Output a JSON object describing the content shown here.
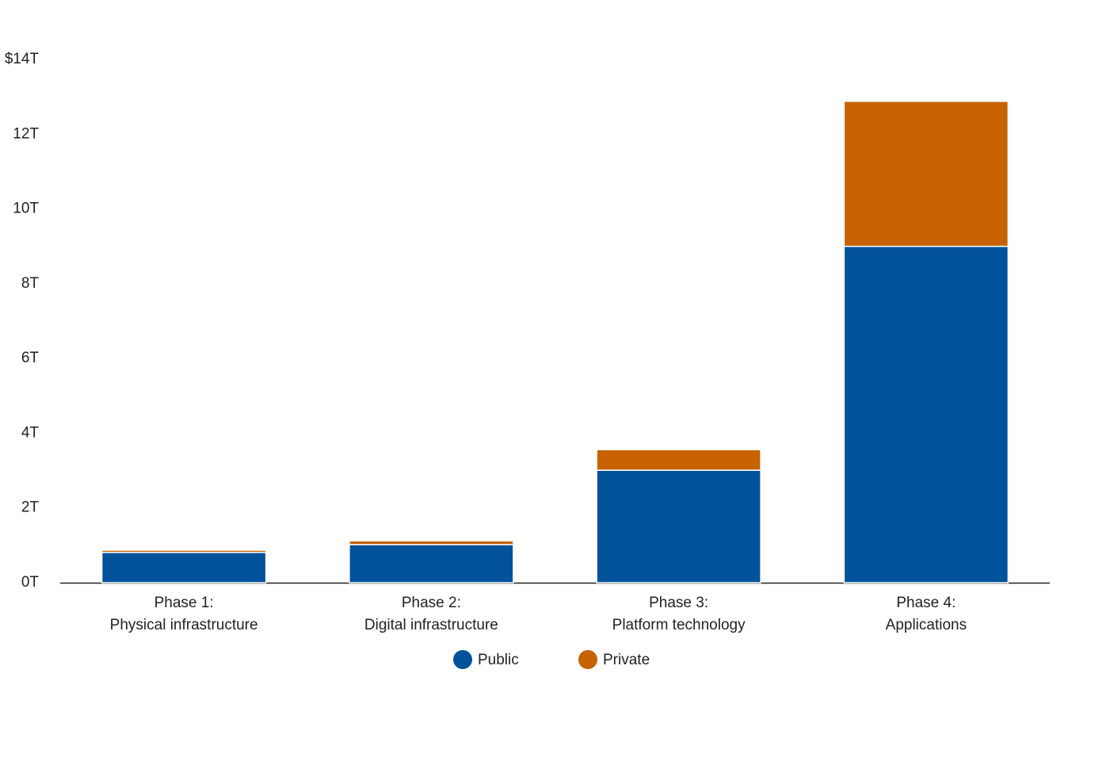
{
  "chart_data": {
    "type": "stacked_bar",
    "categories": [
      [
        "Phase 1:",
        "Physical infrastructure"
      ],
      [
        "Phase 2:",
        "Digital infrastructure"
      ],
      [
        "Phase 3:",
        "Platform technology"
      ],
      [
        "Phase 4:",
        "Applications"
      ]
    ],
    "series": [
      {
        "name": "Public",
        "color": "#00529b",
        "values": [
          0.81,
          1.02,
          3.01,
          9.0
        ]
      },
      {
        "name": "Private",
        "color": "#c66300",
        "values": [
          0.06,
          0.1,
          0.55,
          3.88
        ]
      }
    ],
    "ylim": [
      0,
      14
    ],
    "yticks": [
      {
        "value": 0,
        "label": "0T"
      },
      {
        "value": 2,
        "label": "2T"
      },
      {
        "value": 4,
        "label": "4T"
      },
      {
        "value": 6,
        "label": "6T"
      },
      {
        "value": 8,
        "label": "8T"
      },
      {
        "value": 10,
        "label": "10T"
      },
      {
        "value": 12,
        "label": "12T"
      },
      {
        "value": 14,
        "label": "$14T"
      }
    ],
    "grid": false
  }
}
